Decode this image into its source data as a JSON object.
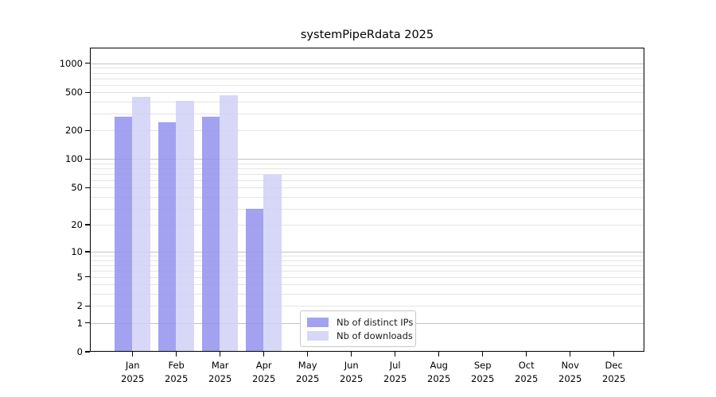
{
  "chart_data": {
    "type": "bar",
    "title": "systemPipeRdata 2025",
    "categories": [
      "Jan",
      "Feb",
      "Mar",
      "Apr",
      "May",
      "Jun",
      "Jul",
      "Aug",
      "Sep",
      "Oct",
      "Nov",
      "Dec"
    ],
    "x_year_label": "2025",
    "series": [
      {
        "name": "Nb of distinct IPs",
        "color": "#9292ef",
        "values": [
          278,
          243,
          277,
          30,
          0,
          0,
          0,
          0,
          0,
          0,
          0,
          0
        ]
      },
      {
        "name": "Nb of downloads",
        "color": "#d0d0f7",
        "values": [
          449,
          408,
          469,
          69,
          0,
          0,
          0,
          0,
          0,
          0,
          0,
          0
        ]
      }
    ],
    "yscale": "log10(value+1)",
    "yticks": [
      0,
      1,
      2,
      5,
      10,
      20,
      50,
      100,
      200,
      500,
      1000
    ],
    "ylim": [
      0,
      1460
    ],
    "grid": true,
    "legend_position": "lower-center",
    "colors": {
      "major_grid": "#c3c3c3",
      "minor_grid": "#e4e4e4",
      "axis": "#000000",
      "text": "#000000",
      "background": "#ffffff"
    }
  }
}
